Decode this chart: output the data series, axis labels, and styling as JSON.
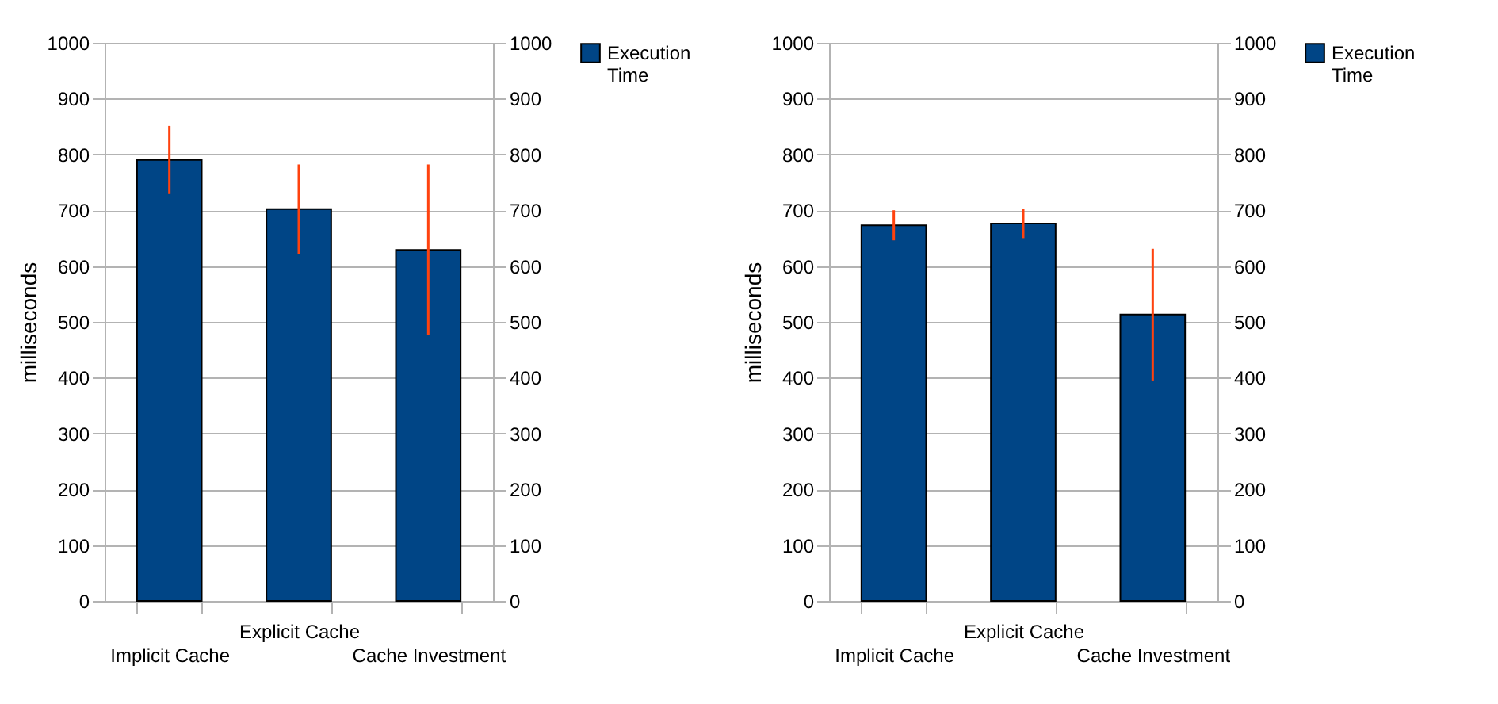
{
  "chart_data": [
    {
      "type": "bar",
      "ylabel": "milliseconds",
      "categories": [
        "Implicit Cache",
        "Explicit Cache",
        "Cache Investment"
      ],
      "series": [
        {
          "name": "Execution Time",
          "color": "#004586",
          "values": [
            790,
            702,
            629
          ],
          "errors": [
            61,
            80,
            153
          ]
        }
      ],
      "ylim": [
        0,
        1000
      ],
      "yticks": [
        0,
        100,
        200,
        300,
        400,
        500,
        600,
        700,
        800,
        900,
        1000
      ],
      "y2lim": [
        0,
        1000
      ],
      "y2ticks": [
        0,
        100,
        200,
        300,
        400,
        500,
        600,
        700,
        800,
        900,
        1000
      ],
      "grid": "y",
      "legend": "right"
    },
    {
      "type": "bar",
      "ylabel": "milliseconds",
      "categories": [
        "Implicit Cache",
        "Explicit Cache",
        "Cache Investment"
      ],
      "series": [
        {
          "name": "Execution Time",
          "color": "#004586",
          "values": [
            673,
            676,
            513
          ],
          "errors": [
            27,
            26,
            118
          ]
        }
      ],
      "ylim": [
        0,
        1000
      ],
      "yticks": [
        0,
        100,
        200,
        300,
        400,
        500,
        600,
        700,
        800,
        900,
        1000
      ],
      "y2lim": [
        0,
        1000
      ],
      "y2ticks": [
        0,
        100,
        200,
        300,
        400,
        500,
        600,
        700,
        800,
        900,
        1000
      ],
      "grid": "y",
      "legend": "right"
    }
  ]
}
